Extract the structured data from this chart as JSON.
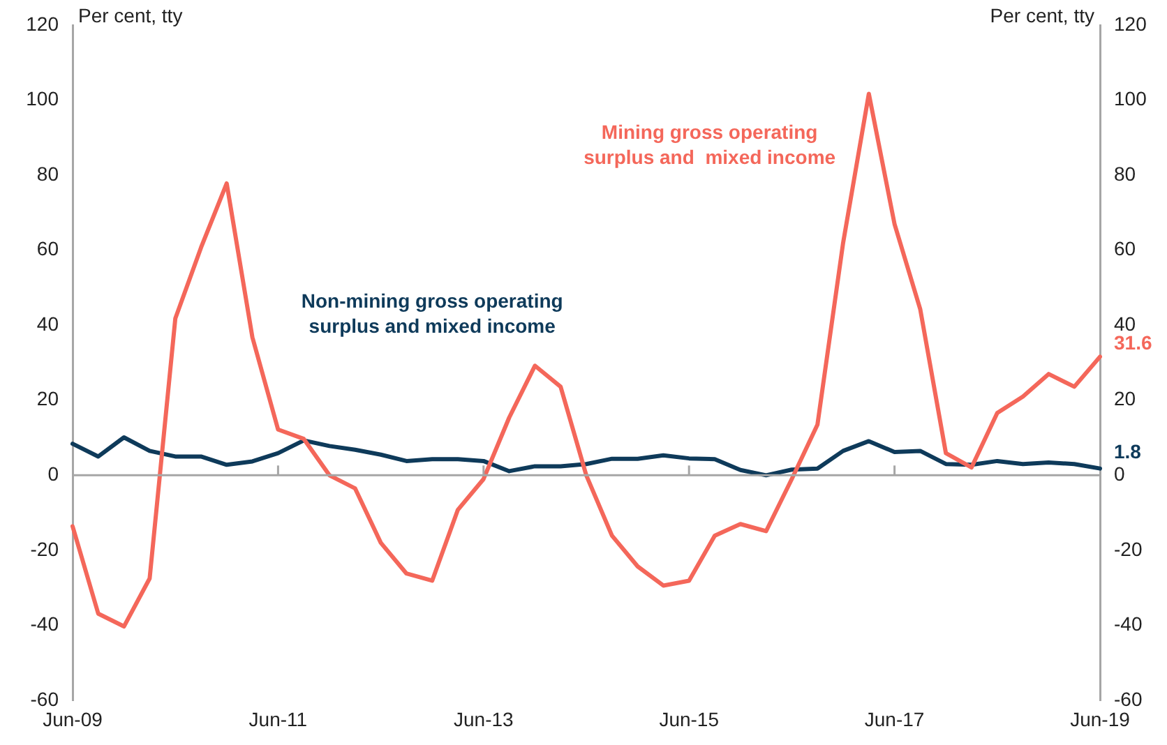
{
  "chart_data": {
    "type": "line",
    "ylabel": "Per cent, tty",
    "y2label": "Per cent, tty",
    "categories": [
      "Jun-09",
      null,
      null,
      null,
      null,
      null,
      null,
      null,
      "Jun-11",
      null,
      null,
      null,
      null,
      null,
      null,
      null,
      "Jun-13",
      null,
      null,
      null,
      null,
      null,
      null,
      null,
      "Jun-15",
      null,
      null,
      null,
      null,
      null,
      null,
      null,
      "Jun-17",
      null,
      null,
      null,
      null,
      null,
      null,
      null,
      "Jun-19"
    ],
    "series": [
      {
        "name": "Mining gross operating surplus and  mixed income",
        "color": "#f4675a",
        "values": [
          -13.6,
          -36.9,
          -40.3,
          -27.5,
          41.8,
          60.7,
          77.8,
          36.8,
          12.2,
          9.7,
          0,
          -3.5,
          -18,
          -26.2,
          -28.1,
          -9.2,
          -1,
          15.4,
          29.2,
          23.6,
          0,
          -16.1,
          -24.3,
          -29.4,
          -28.1,
          -16.1,
          -13,
          -14.9,
          -1,
          13.5,
          62,
          101.7,
          67,
          44.3,
          5.9,
          2.1,
          16.6,
          21,
          27,
          23.6,
          31.6
        ],
        "value_labels": [
          null,
          null,
          null,
          null,
          null,
          null,
          null,
          null,
          null,
          null,
          null,
          null,
          null,
          null,
          null,
          null,
          null,
          null,
          null,
          null,
          null,
          null,
          null,
          null,
          null,
          null,
          null,
          null,
          null,
          null,
          null,
          null,
          null,
          null,
          null,
          null,
          null,
          null,
          null,
          null,
          "31.6"
        ]
      },
      {
        "name": "Non-mining gross operating surplus and mixed income",
        "color": "#0e3a5a",
        "values": [
          8.4,
          5,
          10.1,
          6.5,
          5,
          5,
          2.8,
          3.7,
          5.9,
          9.3,
          7.8,
          6.8,
          5.5,
          3.8,
          4.3,
          4.3,
          3.8,
          1.1,
          2.4,
          2.4,
          3,
          4.4,
          4.4,
          5.3,
          4.5,
          4.3,
          1.4,
          0,
          1.5,
          1.8,
          6.5,
          9.1,
          6.2,
          6.5,
          3,
          2.8,
          3.8,
          3,
          3.4,
          3,
          1.8
        ],
        "value_labels": [
          null,
          null,
          null,
          null,
          null,
          null,
          null,
          null,
          null,
          null,
          null,
          null,
          null,
          null,
          null,
          null,
          null,
          null,
          null,
          null,
          null,
          null,
          null,
          null,
          null,
          null,
          null,
          null,
          null,
          null,
          null,
          null,
          null,
          null,
          null,
          null,
          null,
          null,
          null,
          null,
          "1.8"
        ]
      }
    ],
    "ylim": [
      -60,
      120
    ],
    "yticks": [
      -60,
      -40,
      -20,
      0,
      20,
      40,
      60,
      80,
      100,
      120
    ],
    "y2lim": [
      -60,
      120
    ],
    "y2ticks": [
      -60,
      -40,
      -20,
      0,
      20,
      40,
      60,
      80,
      100,
      120
    ],
    "ref_lines": [
      {
        "axis": "y",
        "value": 0,
        "color": "#a6a6a6"
      }
    ],
    "grid": false,
    "legend": false,
    "marker": "none",
    "line_style": "solid"
  }
}
